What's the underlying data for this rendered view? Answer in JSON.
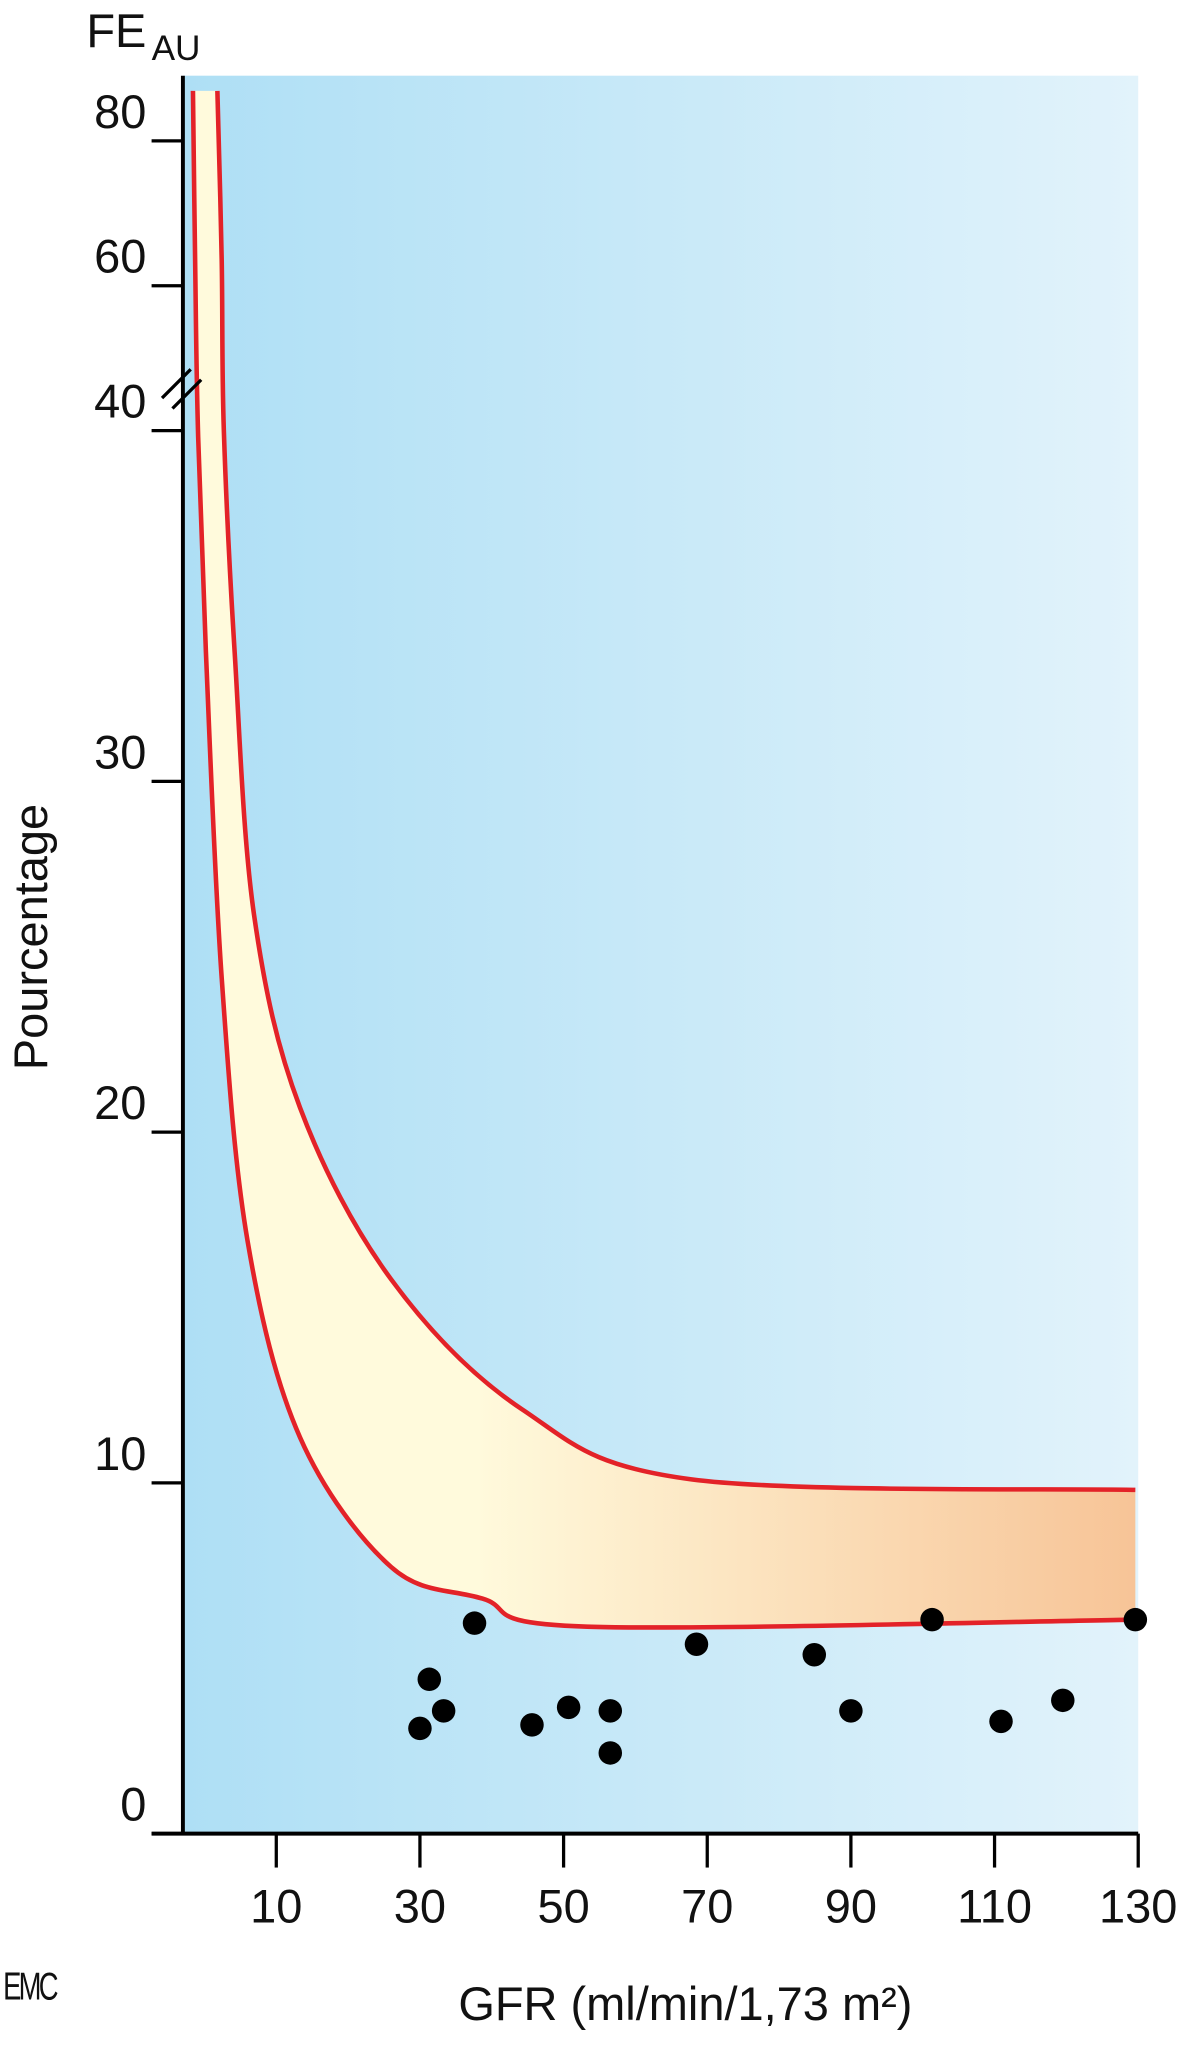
{
  "chart_data": {
    "type": "scatter",
    "title": "FE",
    "title_subscript": "AU",
    "ylabel": "Pourcentage",
    "xlabel": "GFR (ml/min/1,73 m²)",
    "watermark": "EMC",
    "xlim": [
      -3,
      130
    ],
    "ylim": [
      0,
      89
    ],
    "y_break": 40,
    "xticks": [
      10,
      30,
      50,
      70,
      90,
      110,
      130
    ],
    "yticks": [
      0,
      10,
      20,
      30,
      40,
      60,
      80
    ],
    "background_colors": [
      "#aedff5",
      "#e2f3fb"
    ],
    "band": {
      "color": "#e32228",
      "fill_colors": [
        "#fffadc",
        "#f7c497"
      ],
      "upper": {
        "x": [
          1.8,
          2.4,
          2.7,
          4.2,
          6.9,
          13.3,
          26,
          44.2,
          67.8,
          129.6
        ],
        "y": [
          86.9,
          63.6,
          40,
          33.7,
          26.2,
          20.7,
          15.8,
          12.1,
          10.1,
          9.8
        ]
      },
      "lower": {
        "x": [
          -1.6,
          -1.3,
          -0.9,
          0.2,
          2.4,
          6,
          13.3,
          26,
          38.7,
          53.3,
          129.6
        ],
        "y": [
          86.9,
          63.6,
          40,
          33.7,
          24.4,
          16.9,
          11.3,
          7.6,
          6.7,
          5.9,
          6.1
        ]
      }
    },
    "points": {
      "color": "#000000",
      "x": [
        30,
        31.3,
        33.3,
        37.6,
        45.6,
        50.7,
        56.5,
        56.5,
        68.5,
        84.9,
        90,
        101.3,
        110.9,
        119.5,
        129.6
      ],
      "y": [
        3.0,
        4.4,
        3.5,
        6.0,
        3.1,
        3.6,
        3.5,
        2.3,
        5.4,
        5.1,
        3.5,
        6.1,
        3.2,
        3.8,
        6.1
      ]
    }
  }
}
